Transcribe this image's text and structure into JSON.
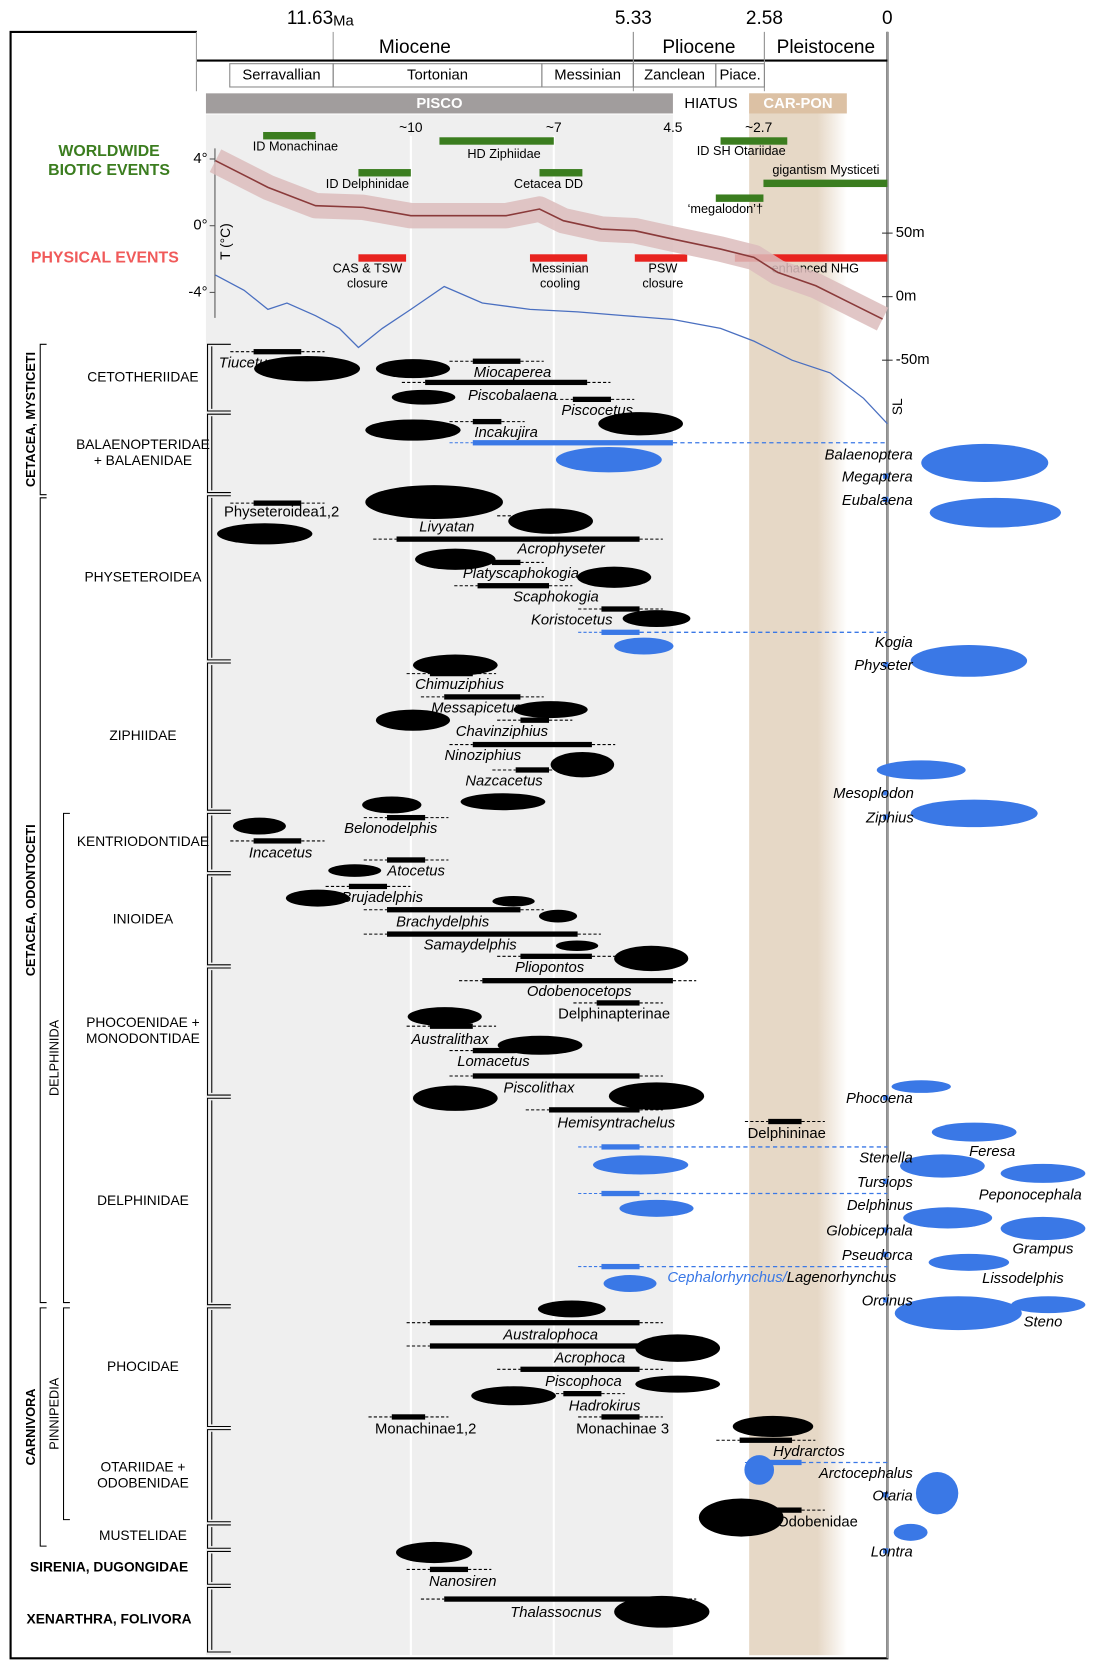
{
  "timescale": {
    "unit": "Ma",
    "ticks": [
      11.63,
      5.33,
      2.58,
      0
    ],
    "epochs": [
      {
        "name": "Miocene",
        "range": [
          14.5,
          5.33
        ]
      },
      {
        "name": "Pliocene",
        "range": [
          5.33,
          2.58
        ]
      },
      {
        "name": "Pleistocene",
        "range": [
          2.58,
          0
        ]
      }
    ],
    "ages": [
      {
        "name": "Serravallian",
        "range": [
          13.8,
          11.63
        ]
      },
      {
        "name": "Tortonian",
        "range": [
          11.63,
          7.25
        ]
      },
      {
        "name": "Messinian",
        "range": [
          7.25,
          5.33
        ]
      },
      {
        "name": "Zanclean",
        "range": [
          5.33,
          3.6
        ]
      },
      {
        "name": "Piace.",
        "range": [
          3.6,
          2.58
        ]
      }
    ]
  },
  "formations": [
    {
      "name": "PISCO",
      "range": [
        14.3,
        4.5
      ],
      "color": "#a19d9d"
    },
    {
      "name": "HIATUS",
      "range": [
        4.5,
        2.9
      ]
    },
    {
      "name": "CAR-PON",
      "range": [
        2.9,
        0.85
      ],
      "color": "#dcc1a4"
    }
  ],
  "event_markers": [
    {
      "value": 10,
      "label": "~10"
    },
    {
      "value": 7,
      "label": "~7"
    },
    4.5,
    {
      "value": 2.7,
      "label": "~2.7"
    }
  ],
  "biotic_events": {
    "title": [
      "WORLDWIDE",
      "BIOTIC EVENTS"
    ],
    "color": "#3b7d1f",
    "events": [
      {
        "label": "ID Monachinae",
        "range": [
          13.1,
          12.0
        ]
      },
      {
        "label": "HD Ziphiidae",
        "range": [
          9.4,
          7.0
        ]
      },
      {
        "label": "ID SH Otariidae",
        "range": [
          3.5,
          2.1
        ]
      },
      {
        "label": "ID Delphinidae",
        "range": [
          11.1,
          10.0
        ]
      },
      {
        "label": "Cetacea DD",
        "range": [
          7.3,
          6.4
        ]
      },
      {
        "label": "gigantism Mysticeti",
        "range": [
          2.6,
          0
        ]
      },
      {
        "label": "‘megalodon’†",
        "range": [
          3.6,
          2.6
        ]
      }
    ]
  },
  "physical_events": {
    "title": "PHYSICAL EVENTS",
    "color": "#e8231f",
    "events": [
      {
        "label": [
          "CAS & TSW",
          "closure"
        ],
        "range": [
          11.1,
          10.1
        ]
      },
      {
        "label": [
          "Messinian",
          "cooling"
        ],
        "range": [
          7.5,
          6.3
        ]
      },
      {
        "label": [
          "PSW",
          "closure"
        ],
        "range": [
          5.3,
          4.2
        ]
      },
      {
        "label": [
          "enhanced NHG"
        ],
        "range": [
          3.2,
          0
        ]
      }
    ]
  },
  "temperature": {
    "axis_label": "T (°C)",
    "color": "#8a3a3a",
    "band_color": "#dcbcbc",
    "yticks": [
      {
        "value": 4,
        "label": "4°"
      },
      {
        "value": 0,
        "label": "0°"
      },
      {
        "value": -4,
        "label": "-4°"
      }
    ],
    "x": [
      14.1,
      13,
      12,
      11,
      10,
      9,
      8,
      7.3,
      6.8,
      6,
      5.3,
      4.5,
      3.5,
      2.8,
      2.3,
      1.5,
      0.8,
      0.1
    ],
    "values": [
      3.9,
      2.3,
      1.2,
      1.1,
      0.6,
      0.6,
      0.6,
      1.0,
      0.3,
      -0.2,
      -0.3,
      -0.8,
      -1.4,
      -1.9,
      -2.8,
      -3.6,
      -4.6,
      -5.6
    ]
  },
  "sea_level": {
    "axis_label": "SL",
    "color": "#4a6fc0",
    "yticks": [
      {
        "value": 50,
        "label": "50m"
      },
      {
        "value": 0,
        "label": "0m"
      },
      {
        "value": -50,
        "label": "-50m"
      }
    ],
    "x": [
      14.1,
      13.5,
      13,
      12.6,
      12,
      11.5,
      11.1,
      10.6,
      10,
      9.3,
      8.5,
      7.5,
      6.5,
      5.5,
      4.5,
      3.5,
      2.8,
      2,
      1.2,
      0.5,
      0
    ],
    "values": [
      17,
      5,
      -10,
      -5,
      -15,
      -25,
      -40,
      -25,
      -10,
      8,
      -5,
      -10,
      -12,
      -15,
      -18,
      -25,
      -35,
      -50,
      -60,
      -80,
      -100
    ]
  },
  "clades": [
    "CETACEA, MYSTICETI",
    "CETACEA, ODONTOCETI",
    "DELPHINIDA",
    "CARNIVORA",
    "PINNIPEDIA"
  ],
  "groups": [
    [
      "CETOTHERIIDAE"
    ],
    [
      "BALAENOPTERIDAE",
      "+ BALAENIDAE"
    ],
    [
      "PHYSETEROIDEA"
    ],
    [
      "ZIPHIIDAE"
    ],
    [
      "KENTRIODONTIDAE"
    ],
    [
      "INIOIDEA"
    ],
    [
      "PHOCOENIDAE +",
      "MONODONTIDAE"
    ],
    [
      "DELPHINIDAE"
    ],
    [
      "PHOCIDAE"
    ],
    [
      "OTARIIDAE +",
      "ODOBENIDAE"
    ],
    [
      "MUSTELIDAE"
    ],
    [
      "SIRENIA, DUGONGIDAE"
    ],
    [
      "XENARTHRA, FOLIVORA"
    ]
  ],
  "taxa": [
    {
      "name": "Tiucetus",
      "range": [
        13.3,
        12.3
      ],
      "color": "#000"
    },
    {
      "name": "Miocaperea",
      "range": [
        8.7,
        7.7
      ],
      "color": "#000"
    },
    {
      "name": "Piscobalaena",
      "range": [
        9.7,
        6.3
      ],
      "color": "#000"
    },
    {
      "name": "Piscocetus",
      "range": [
        6.6,
        5.8
      ],
      "color": "#000"
    },
    {
      "name": "Incakujira",
      "range": [
        8.7,
        8.1
      ],
      "color": "#000"
    },
    {
      "name": "Balaenoptera",
      "range": [
        8.7,
        4.5
      ],
      "color": "#3a78e6",
      "extant": true
    },
    {
      "name": "Physeteroidea1,2",
      "range": [
        13.3,
        12.3
      ],
      "color": "#000"
    },
    {
      "name": "Livyatan",
      "range": [
        10.3,
        5.2
      ],
      "color": "#000"
    },
    {
      "name": "Acrophyseter",
      "range": [
        7.7,
        7.1
      ],
      "color": "#000"
    },
    {
      "name": "Platyscaphokogia",
      "range": [
        8.3,
        7.7
      ],
      "color": "#000"
    },
    {
      "name": "Scaphokogia",
      "range": [
        8.6,
        7.1
      ],
      "color": "#000"
    },
    {
      "name": "Koristocetus",
      "range": [
        6.0,
        5.2
      ],
      "color": "#000"
    },
    {
      "name": "Kogia",
      "range": [
        6.0,
        5.2
      ],
      "color": "#3a78e6",
      "extant": true
    },
    {
      "name": "Chimuziphius",
      "range": [
        9.6,
        8.7
      ],
      "color": "#000"
    },
    {
      "name": "Messapicetus",
      "range": [
        9.3,
        7.7
      ],
      "color": "#000"
    },
    {
      "name": "Chavinziphius",
      "range": [
        7.7,
        7.1
      ],
      "color": "#000"
    },
    {
      "name": "Ninoziphius",
      "range": [
        8.7,
        6.2
      ],
      "color": "#000"
    },
    {
      "name": "Nazcacetus",
      "range": [
        7.8,
        7.1
      ],
      "color": "#000"
    },
    {
      "name": "Belonodelphis",
      "range": [
        10.5,
        9.7
      ],
      "color": "#000"
    },
    {
      "name": "Incacetus",
      "range": [
        13.3,
        12.3
      ],
      "color": "#000"
    },
    {
      "name": "Atocetus",
      "range": [
        10.5,
        9.7
      ],
      "color": "#000"
    },
    {
      "name": "Brujadelphis",
      "range": [
        11.3,
        10.5
      ],
      "color": "#000"
    },
    {
      "name": "Brachydelphis",
      "range": [
        10.5,
        7.7
      ],
      "color": "#000"
    },
    {
      "name": "Samaydelphis",
      "range": [
        10.5,
        6.5
      ],
      "color": "#000"
    },
    {
      "name": "Pliopontos",
      "range": [
        7.7,
        6.2
      ],
      "color": "#000"
    },
    {
      "name": "Odobenocetops",
      "range": [
        8.5,
        4.5
      ],
      "color": "#000"
    },
    {
      "name": "Delphinapterinae",
      "range": [
        6.1,
        5.2
      ],
      "color": "#000"
    },
    {
      "name": "Australithax",
      "range": [
        9.6,
        8.7
      ],
      "color": "#000"
    },
    {
      "name": "Lomacetus",
      "range": [
        8.7,
        7.8
      ],
      "color": "#000"
    },
    {
      "name": "Piscolithax",
      "range": [
        8.7,
        5.2
      ],
      "color": "#000"
    },
    {
      "name": "Hemisyntrachelus",
      "range": [
        7.1,
        5.2
      ],
      "color": "#000"
    },
    {
      "name": "Delphininae",
      "range": [
        2.5,
        1.8
      ],
      "color": "#000"
    },
    {
      "name": "Stenella",
      "range": [
        6.0,
        5.2
      ],
      "color": "#3a78e6",
      "extant": true
    },
    {
      "name": "Delphinus",
      "range": [
        6.0,
        5.2
      ],
      "color": "#3a78e6",
      "extant": true
    },
    {
      "name": "Cephalorhynchus/",
      "range": [
        6.0,
        5.2
      ],
      "color": "#3a78e6",
      "label_color": "#3a78e6",
      "extant": true
    },
    {
      "name": "Australophoca",
      "range": [
        9.6,
        5.2
      ],
      "color": "#000"
    },
    {
      "name": "Acrophoca",
      "range": [
        9.6,
        5.2
      ],
      "color": "#000"
    },
    {
      "name": "Piscophoca",
      "range": [
        7.7,
        5.2
      ],
      "color": "#000"
    },
    {
      "name": "Hadrokirus",
      "range": [
        6.8,
        6.0
      ],
      "color": "#000"
    },
    {
      "name": "Monachinae1,2",
      "range": [
        10.4,
        9.7
      ],
      "color": "#000"
    },
    {
      "name": "Monachinae 3",
      "range": [
        6.0,
        5.2
      ],
      "color": "#000"
    },
    {
      "name": "Hydrarctos",
      "range": [
        3.1,
        2.0
      ],
      "color": "#000"
    },
    {
      "name": "Arctocephalus",
      "range": [
        2.5,
        1.8
      ],
      "color": "#3a78e6",
      "extant": true
    },
    {
      "name": "Odobenidae",
      "range": [
        2.5,
        1.8
      ],
      "color": "#000"
    },
    {
      "name": "Nanosiren",
      "range": [
        9.6,
        8.8
      ],
      "color": "#000"
    },
    {
      "name": "Thalassocnus",
      "range": [
        9.3,
        4.5
      ],
      "color": "#000"
    }
  ],
  "extant_taxa": [
    "Megaptera",
    "Eubalaena",
    "Physeter",
    "Mesoplodon",
    "Ziphius",
    "Phocoena",
    "Feresa",
    "Tursiops",
    "Peponocephala",
    "Globicephala",
    "Grampus",
    "Pseudorca",
    "Lagenorhynchus",
    "Lissodelphis",
    "Orcinus",
    "Steno",
    "Otaria",
    "Lontra"
  ]
}
